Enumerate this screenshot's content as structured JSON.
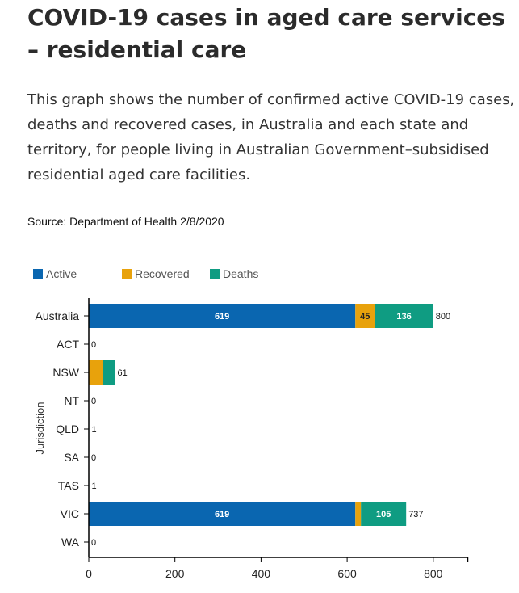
{
  "header": {
    "title": "COVID-19 cases in aged care services – residential care",
    "description": "This graph shows the number of confirmed active COVID-19 cases, deaths and recovered cases, in Australia and each state and territory, for people living in Australian Government–subsidised residential aged care facilities.",
    "source": "Source: Department of Health 2/8/2020"
  },
  "chart_data": {
    "type": "bar",
    "orientation": "horizontal",
    "stacked": true,
    "title": "",
    "xlabel": "",
    "ylabel": "Jurisdiction",
    "xlim": [
      0,
      880
    ],
    "xticks": [
      0,
      200,
      400,
      600,
      800
    ],
    "categories": [
      "Australia",
      "ACT",
      "NSW",
      "NT",
      "QLD",
      "SA",
      "TAS",
      "VIC",
      "WA"
    ],
    "series": [
      {
        "name": "Active",
        "color": "#0a66b0",
        "values": [
          619,
          0,
          0,
          0,
          0,
          0,
          0,
          619,
          0
        ]
      },
      {
        "name": "Recovered",
        "color": "#e8a20c",
        "values": [
          45,
          0,
          32,
          0,
          0,
          0,
          0,
          13,
          0
        ]
      },
      {
        "name": "Deaths",
        "color": "#0f9c82",
        "values": [
          136,
          0,
          29,
          0,
          1,
          0,
          1,
          105,
          0
        ]
      }
    ],
    "totals": [
      800,
      0,
      61,
      0,
      1,
      0,
      1,
      737,
      0
    ],
    "segment_labels": [
      {
        "category": "Australia",
        "series": "Active",
        "text": "619"
      },
      {
        "category": "Australia",
        "series": "Recovered",
        "text": "45"
      },
      {
        "category": "Australia",
        "series": "Deaths",
        "text": "136"
      },
      {
        "category": "VIC",
        "series": "Active",
        "text": "619"
      },
      {
        "category": "VIC",
        "series": "Deaths",
        "text": "105"
      }
    ],
    "legend_position": "top-left"
  }
}
